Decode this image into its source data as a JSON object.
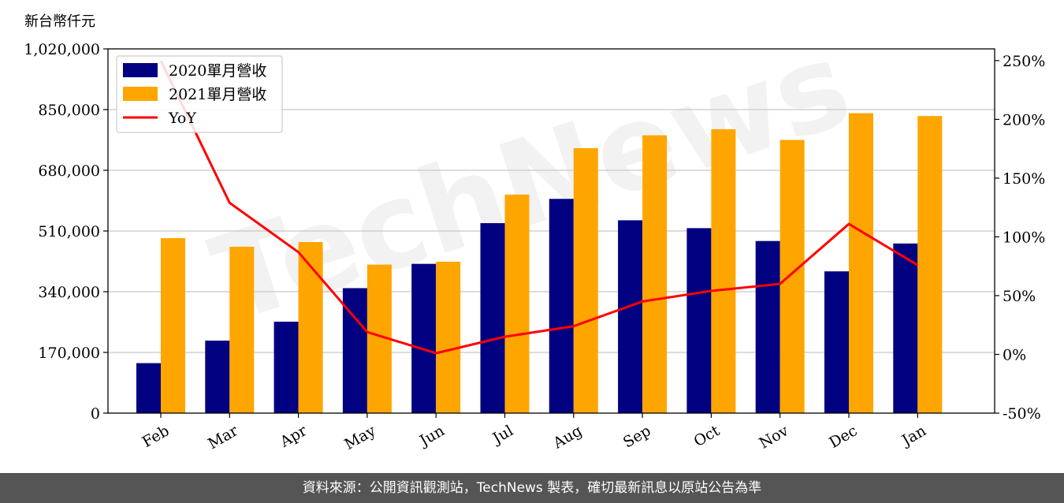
{
  "chart_data": {
    "type": "bar",
    "unit_label": "新台幣仟元",
    "categories": [
      "Feb",
      "Mar",
      "Apr",
      "May",
      "Jun",
      "Jul",
      "Aug",
      "Sep",
      "Oct",
      "Nov",
      "Dec",
      "Jan"
    ],
    "series": [
      {
        "name": "2020單月營收",
        "type": "bar",
        "color": "#000080",
        "values": [
          140000,
          203000,
          256000,
          350000,
          418000,
          532000,
          600000,
          540000,
          518000,
          482000,
          397000,
          475000
        ]
      },
      {
        "name": "2021單月營收",
        "type": "bar",
        "color": "#ffa500",
        "values": [
          490000,
          466000,
          479000,
          416000,
          424000,
          612000,
          742000,
          778000,
          795000,
          765000,
          840000,
          832000
        ]
      },
      {
        "name": "YoY",
        "type": "line",
        "color": "#ff0000",
        "axis": "right",
        "values": [
          250,
          129,
          87,
          19,
          1,
          15,
          24,
          45,
          54,
          60,
          111,
          76
        ]
      }
    ],
    "y_left": {
      "ylim": [
        0,
        1020000
      ],
      "ticks": [
        0,
        170000,
        340000,
        510000,
        680000,
        850000,
        1020000
      ],
      "tick_labels": [
        "0",
        "170,000",
        "340,000",
        "510,000",
        "680,000",
        "850,000",
        "1,020,000"
      ]
    },
    "y_right": {
      "ylim": [
        -50,
        260
      ],
      "ticks": [
        -50,
        0,
        50,
        100,
        150,
        200,
        250
      ],
      "tick_labels": [
        "-50%",
        "0%",
        "50%",
        "100%",
        "150%",
        "200%",
        "250%"
      ]
    },
    "grid": true,
    "legend": "top-left"
  },
  "watermark": "TechNews",
  "footer": {
    "source": "資料來源：公開資訊觀測站，TechNews 製表，確切最新訊息以原站公告為準"
  }
}
